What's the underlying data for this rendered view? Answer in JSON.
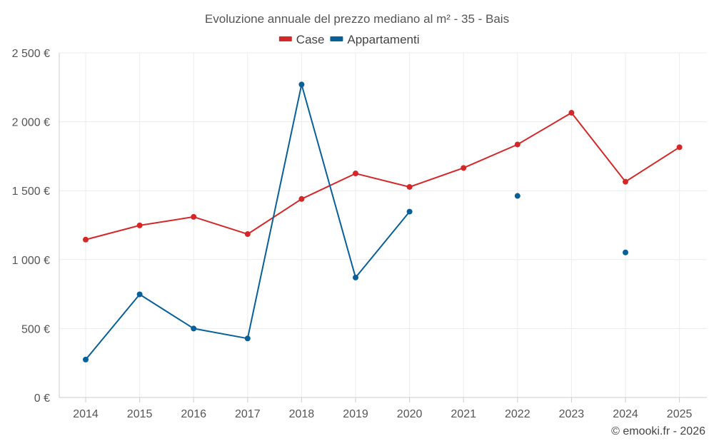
{
  "chart_data": {
    "type": "line",
    "title": "Evoluzione annuale del prezzo mediano al m² - 35 - Bais",
    "categories": [
      "2014",
      "2015",
      "2016",
      "2017",
      "2018",
      "2019",
      "2020",
      "2021",
      "2022",
      "2023",
      "2024",
      "2025"
    ],
    "ylim": [
      0,
      2500
    ],
    "yticks": [
      0,
      500,
      1000,
      1500,
      2000,
      2500
    ],
    "ytick_labels": [
      "0 €",
      "500 €",
      "1 000 €",
      "1 500 €",
      "2 000 €",
      "2 500 €"
    ],
    "grid": true,
    "legend_position": "top-center",
    "series": [
      {
        "name": "Case",
        "color": "#d62728",
        "values": [
          1145,
          1248,
          1310,
          1185,
          1440,
          1625,
          1527,
          1665,
          1835,
          2065,
          1565,
          1815
        ]
      },
      {
        "name": "Appartamenti",
        "color": "#08609a",
        "values": [
          275,
          748,
          500,
          428,
          2270,
          870,
          1348,
          null,
          1462,
          null,
          1052,
          null
        ]
      }
    ]
  },
  "credit": "© emooki.fr - 2026"
}
